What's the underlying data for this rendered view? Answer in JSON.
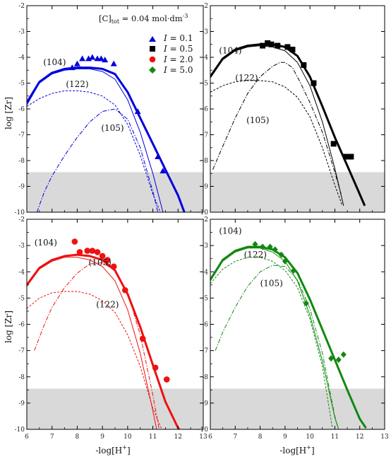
{
  "figure": {
    "concentration": {
      "main": "[C]",
      "sub": "tot",
      "rest": " = 0.04 mol·dm",
      "sup": "-3"
    },
    "xlabel": {
      "main": "-log[H",
      "sup": "+",
      "rest": "]"
    },
    "ylabel": "log [Zr]"
  },
  "legend": [
    {
      "ital": "I",
      "text": " = 0.1",
      "marker": "triangle",
      "color": "#0000dd"
    },
    {
      "ital": "I",
      "text": " = 0.5",
      "marker": "square",
      "color": "#000000"
    },
    {
      "ital": "I",
      "text": " = 2.0",
      "marker": "circle",
      "color": "#ee1111"
    },
    {
      "ital": "I",
      "text": " = 5.0",
      "marker": "diamond",
      "color": "#118811"
    }
  ],
  "chart_data": [
    {
      "type": "line",
      "panel": "top-left",
      "color": "#0000dd",
      "marker": "triangle",
      "xlim": [
        6,
        13
      ],
      "ylim": [
        -10,
        -2
      ],
      "x_ticks": [
        6,
        7,
        8,
        9,
        10,
        11,
        12,
        13
      ],
      "y_ticks": [
        -2,
        -3,
        -4,
        -5,
        -6,
        -7,
        -8,
        -9,
        -10
      ],
      "x_tick_labels_shown": false,
      "y_tick_labels_shown": true,
      "shaded_band_y": [
        -10,
        -8.45
      ],
      "annotations": [
        {
          "text": "(104)",
          "x": 6.65,
          "y": -4.3
        },
        {
          "text": "(122)",
          "x": 7.55,
          "y": -5.15
        },
        {
          "text": "(105)",
          "x": 8.95,
          "y": -6.85
        }
      ],
      "points": [
        {
          "x": 7.8,
          "y": -4.4
        },
        {
          "x": 8.0,
          "y": -4.25
        },
        {
          "x": 8.2,
          "y": -4.05
        },
        {
          "x": 8.45,
          "y": -4.05
        },
        {
          "x": 8.6,
          "y": -4.0
        },
        {
          "x": 8.8,
          "y": -4.05
        },
        {
          "x": 8.95,
          "y": -4.05
        },
        {
          "x": 9.1,
          "y": -4.1
        },
        {
          "x": 9.45,
          "y": -4.25
        },
        {
          "x": 10.4,
          "y": -6.1
        },
        {
          "x": 11.2,
          "y": -7.85
        },
        {
          "x": 11.4,
          "y": -8.4
        }
      ],
      "series": [
        {
          "style": "thick",
          "x": [
            6,
            6.5,
            7,
            7.5,
            8,
            8.5,
            9,
            9.5,
            10,
            10.5,
            11,
            11.5,
            12,
            12.25
          ],
          "y": [
            -5.75,
            -4.95,
            -4.6,
            -4.45,
            -4.4,
            -4.4,
            -4.45,
            -4.65,
            -5.35,
            -6.35,
            -7.35,
            -8.35,
            -9.35,
            -10
          ]
        },
        {
          "style": "thin",
          "x": [
            6,
            6.5,
            7,
            7.5,
            8,
            8.5,
            9,
            9.5,
            10,
            10.5,
            11,
            11.4
          ],
          "y": [
            -5.85,
            -5.0,
            -4.65,
            -4.5,
            -4.45,
            -4.45,
            -4.55,
            -4.85,
            -5.65,
            -6.9,
            -8.5,
            -10
          ]
        },
        {
          "style": "dashed",
          "x": [
            6,
            6.5,
            7,
            7.5,
            8,
            8.5,
            9,
            9.5,
            10,
            10.5,
            11,
            11.3
          ],
          "y": [
            -5.9,
            -5.6,
            -5.4,
            -5.3,
            -5.3,
            -5.35,
            -5.5,
            -5.85,
            -6.6,
            -7.8,
            -9.3,
            -10
          ]
        },
        {
          "style": "dashdot",
          "x": [
            6.4,
            6.7,
            7,
            7.5,
            8,
            8.5,
            9,
            9.5,
            10,
            10.5,
            11,
            11.2
          ],
          "y": [
            -10,
            -9.2,
            -8.6,
            -7.8,
            -7.1,
            -6.5,
            -6.1,
            -6.0,
            -6.4,
            -7.5,
            -9.2,
            -10
          ]
        }
      ]
    },
    {
      "type": "line",
      "panel": "top-right",
      "color": "#000000",
      "marker": "square",
      "xlim": [
        6,
        13
      ],
      "ylim": [
        -10,
        -2
      ],
      "x_ticks": [
        6,
        7,
        8,
        9,
        10,
        11,
        12,
        13
      ],
      "y_ticks": [
        -2,
        -3,
        -4,
        -5,
        -6,
        -7,
        -8,
        -9,
        -10
      ],
      "x_tick_labels_shown": false,
      "y_tick_labels_shown": false,
      "shaded_band_y": [
        -10,
        -8.45
      ],
      "annotations": [
        {
          "text": "(104)",
          "x": 6.35,
          "y": -3.85
        },
        {
          "text": "(122)",
          "x": 7.0,
          "y": -4.9
        },
        {
          "text": "(105)",
          "x": 7.45,
          "y": -6.55
        }
      ],
      "points": [
        {
          "x": 8.1,
          "y": -3.55
        },
        {
          "x": 8.3,
          "y": -3.45
        },
        {
          "x": 8.45,
          "y": -3.5
        },
        {
          "x": 8.7,
          "y": -3.55
        },
        {
          "x": 9.1,
          "y": -3.6
        },
        {
          "x": 9.3,
          "y": -3.7
        },
        {
          "x": 9.75,
          "y": -4.3
        },
        {
          "x": 10.15,
          "y": -5.0
        },
        {
          "x": 10.95,
          "y": -7.35
        },
        {
          "x": 11.45,
          "y": -7.85
        },
        {
          "x": 11.65,
          "y": -7.85
        }
      ],
      "series": [
        {
          "style": "thick",
          "x": [
            6,
            6.5,
            7,
            7.5,
            8,
            8.5,
            9,
            9.5,
            10,
            10.5,
            11,
            11.5,
            12,
            12.2
          ],
          "y": [
            -4.75,
            -4.05,
            -3.7,
            -3.55,
            -3.5,
            -3.5,
            -3.6,
            -3.95,
            -4.75,
            -5.9,
            -7.1,
            -8.2,
            -9.3,
            -9.75
          ]
        },
        {
          "style": "thin",
          "x": [
            6,
            6.5,
            7,
            7.5,
            8,
            8.5,
            9,
            9.5,
            10,
            10.5,
            11,
            11.35
          ],
          "y": [
            -4.8,
            -4.1,
            -3.75,
            -3.6,
            -3.55,
            -3.6,
            -3.75,
            -4.2,
            -5.1,
            -6.5,
            -8.3,
            -9.75
          ]
        },
        {
          "style": "dashed",
          "x": [
            6,
            6.5,
            7,
            7.5,
            8,
            8.5,
            9,
            9.5,
            10,
            10.5,
            11,
            11.3
          ],
          "y": [
            -5.35,
            -5.1,
            -4.95,
            -4.9,
            -4.9,
            -4.95,
            -5.15,
            -5.55,
            -6.3,
            -7.5,
            -8.95,
            -9.75
          ]
        },
        {
          "style": "dashdot",
          "x": [
            6.1,
            6.5,
            7,
            7.5,
            8,
            8.5,
            8.8,
            9,
            9.3,
            9.6,
            10,
            10.5,
            11,
            11.25
          ],
          "y": [
            -8.35,
            -7.45,
            -6.35,
            -5.4,
            -4.75,
            -4.35,
            -4.2,
            -4.2,
            -4.4,
            -4.95,
            -5.75,
            -6.9,
            -8.45,
            -9.3
          ]
        }
      ]
    },
    {
      "type": "line",
      "panel": "bottom-left",
      "color": "#ee1111",
      "marker": "circle",
      "xlim": [
        6,
        13
      ],
      "ylim": [
        -10,
        -2
      ],
      "x_ticks": [
        6,
        7,
        8,
        9,
        10,
        11,
        12,
        13
      ],
      "y_ticks": [
        -2,
        -3,
        -4,
        -5,
        -6,
        -7,
        -8,
        -9,
        -10
      ],
      "x_tick_labels_shown": true,
      "y_tick_labels_shown": true,
      "shaded_band_y": [
        -10,
        -8.45
      ],
      "annotations": [
        {
          "text": "(104)",
          "x": 6.3,
          "y": -3.0
        },
        {
          "text": "(105)",
          "x": 8.45,
          "y": -3.75
        },
        {
          "text": "(122)",
          "x": 8.75,
          "y": -5.35
        }
      ],
      "points": [
        {
          "x": 7.9,
          "y": -2.85
        },
        {
          "x": 8.1,
          "y": -3.25
        },
        {
          "x": 8.4,
          "y": -3.2
        },
        {
          "x": 8.6,
          "y": -3.2
        },
        {
          "x": 8.8,
          "y": -3.25
        },
        {
          "x": 9.0,
          "y": -3.4
        },
        {
          "x": 9.2,
          "y": -3.55
        },
        {
          "x": 9.45,
          "y": -3.8
        },
        {
          "x": 9.9,
          "y": -4.7
        },
        {
          "x": 10.6,
          "y": -6.55
        },
        {
          "x": 11.1,
          "y": -7.65
        },
        {
          "x": 11.55,
          "y": -8.1
        }
      ],
      "series": [
        {
          "style": "thick",
          "x": [
            6,
            6.5,
            7,
            7.5,
            8,
            8.5,
            9,
            9.5,
            10,
            10.5,
            11,
            11.5,
            12,
            12.05
          ],
          "y": [
            -4.5,
            -3.85,
            -3.55,
            -3.4,
            -3.35,
            -3.4,
            -3.55,
            -3.95,
            -4.85,
            -6.1,
            -7.55,
            -8.95,
            -9.95,
            -10
          ]
        },
        {
          "style": "thin",
          "x": [
            6,
            6.5,
            7,
            7.5,
            8,
            8.5,
            9,
            9.5,
            10,
            10.5,
            11,
            11.15
          ],
          "y": [
            -4.55,
            -3.9,
            -3.6,
            -3.45,
            -3.45,
            -3.55,
            -3.8,
            -4.35,
            -5.45,
            -7.1,
            -9.3,
            -10
          ]
        },
        {
          "style": "dashed",
          "x": [
            6,
            6.5,
            7,
            7.5,
            8,
            8.5,
            9,
            9.5,
            10,
            10.5,
            11,
            11.35
          ],
          "y": [
            -5.4,
            -5.0,
            -4.8,
            -4.75,
            -4.75,
            -4.85,
            -5.1,
            -5.55,
            -6.4,
            -7.6,
            -9.2,
            -10
          ]
        },
        {
          "style": "dashdot",
          "x": [
            6.3,
            6.7,
            7,
            7.5,
            8,
            8.5,
            9,
            9.5,
            10,
            10.5,
            11,
            11.25
          ],
          "y": [
            -7.0,
            -6.0,
            -5.35,
            -4.6,
            -4.05,
            -3.7,
            -3.65,
            -3.95,
            -4.8,
            -6.4,
            -8.7,
            -10
          ]
        }
      ]
    },
    {
      "type": "line",
      "panel": "bottom-right",
      "color": "#118811",
      "marker": "diamond",
      "xlim": [
        6,
        13
      ],
      "ylim": [
        -10,
        -2
      ],
      "x_ticks": [
        6,
        7,
        8,
        9,
        10,
        11,
        12,
        13
      ],
      "y_ticks": [
        -2,
        -3,
        -4,
        -5,
        -6,
        -7,
        -8,
        -9,
        -10
      ],
      "x_tick_labels_shown": true,
      "y_tick_labels_shown": false,
      "shaded_band_y": [
        -10,
        -8.45
      ],
      "annotations": [
        {
          "text": "(104)",
          "x": 6.35,
          "y": -2.55
        },
        {
          "text": "(122)",
          "x": 7.35,
          "y": -3.45
        },
        {
          "text": "(105)",
          "x": 8.0,
          "y": -4.55
        }
      ],
      "points": [
        {
          "x": 7.8,
          "y": -2.95
        },
        {
          "x": 8.1,
          "y": -3.05
        },
        {
          "x": 8.4,
          "y": -3.05
        },
        {
          "x": 8.6,
          "y": -3.15
        },
        {
          "x": 8.85,
          "y": -3.35
        },
        {
          "x": 9.0,
          "y": -3.6
        },
        {
          "x": 9.35,
          "y": -3.95
        },
        {
          "x": 9.85,
          "y": -5.2
        },
        {
          "x": 10.85,
          "y": -7.3
        },
        {
          "x": 11.15,
          "y": -7.35
        },
        {
          "x": 11.35,
          "y": -7.15
        }
      ],
      "series": [
        {
          "style": "thick",
          "x": [
            6,
            6.5,
            7,
            7.5,
            8,
            8.5,
            9,
            9.5,
            10,
            10.5,
            11,
            11.5,
            12,
            12.25
          ],
          "y": [
            -4.3,
            -3.55,
            -3.2,
            -3.05,
            -3.05,
            -3.15,
            -3.45,
            -4.05,
            -5.05,
            -6.2,
            -7.35,
            -8.5,
            -9.6,
            -9.95
          ]
        },
        {
          "style": "thin",
          "x": [
            6,
            6.5,
            7,
            7.5,
            8,
            8.5,
            9,
            9.5,
            10,
            10.5,
            11,
            11.15
          ],
          "y": [
            -4.35,
            -3.6,
            -3.25,
            -3.1,
            -3.1,
            -3.25,
            -3.6,
            -4.35,
            -5.65,
            -7.4,
            -9.55,
            -10
          ]
        },
        {
          "style": "dashed",
          "x": [
            6,
            6.5,
            7,
            7.5,
            8,
            8.5,
            9,
            9.5,
            10,
            10.5,
            10.9
          ],
          "y": [
            -4.45,
            -3.9,
            -3.6,
            -3.45,
            -3.45,
            -3.6,
            -3.95,
            -4.6,
            -5.8,
            -7.6,
            -9.95
          ]
        },
        {
          "style": "dashdot",
          "x": [
            6.2,
            6.5,
            7,
            7.5,
            8,
            8.5,
            9,
            9.5,
            10,
            10.5,
            11,
            11.15
          ],
          "y": [
            -7.0,
            -6.3,
            -5.35,
            -4.55,
            -4.0,
            -3.75,
            -3.8,
            -4.3,
            -5.4,
            -7.1,
            -9.5,
            -10
          ]
        }
      ]
    }
  ]
}
